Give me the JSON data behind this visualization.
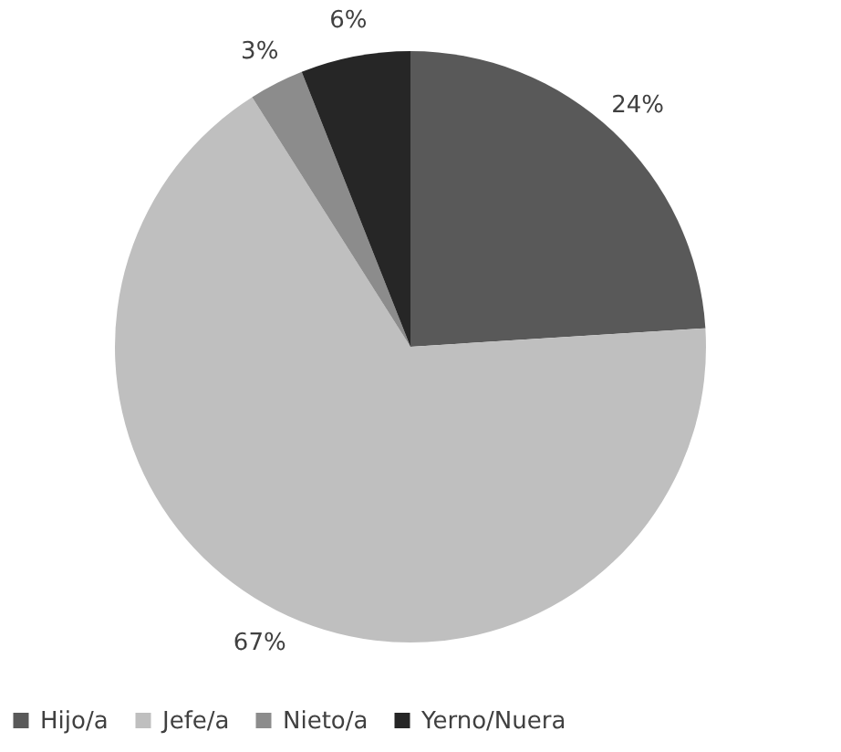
{
  "chart_data": {
    "type": "pie",
    "categories": [
      "Hijo/a",
      "Jefe/a",
      "Nieto/a",
      "Yerno/Nuera"
    ],
    "values": [
      24,
      67,
      3,
      6
    ],
    "colors": [
      "#595959",
      "#bfbfbf",
      "#8c8c8c",
      "#262626"
    ],
    "value_labels": [
      "24%",
      "67%",
      "3%",
      "6%"
    ],
    "legend": "bottom"
  }
}
